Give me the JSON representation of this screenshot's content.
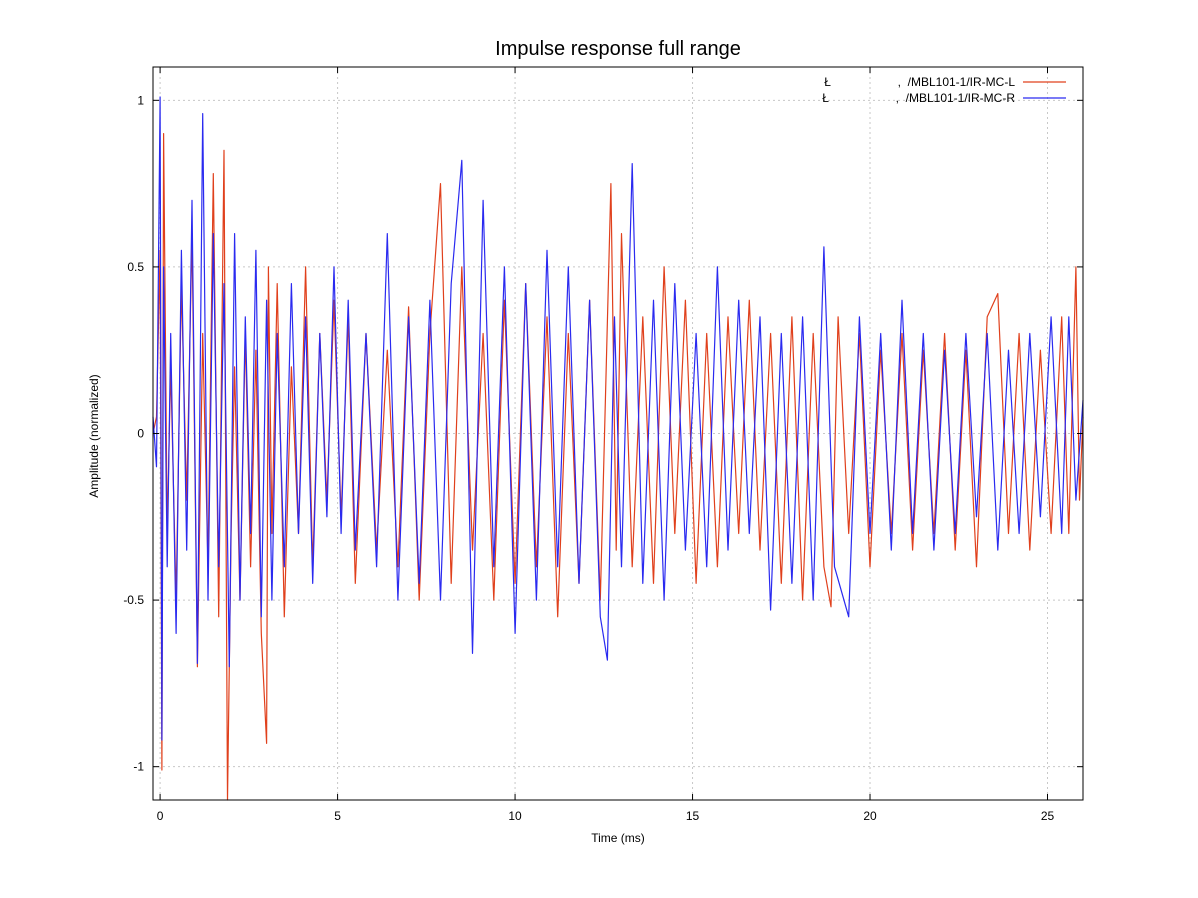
{
  "chart_data": {
    "type": "line",
    "title": "Impulse response full range",
    "xlabel": "Time (ms)",
    "ylabel": "Amplitude (normalized)",
    "xlim": [
      -0.2,
      26.0
    ],
    "ylim": [
      -1.1,
      1.1
    ],
    "xticks": [
      0,
      5,
      10,
      15,
      20,
      25
    ],
    "yticks": [
      -1,
      -0.5,
      0,
      0.5,
      1
    ],
    "xtick_labels": [
      "0",
      "5",
      "10",
      "15",
      "20",
      "25"
    ],
    "ytick_labels": [
      "-1",
      "-0.5",
      "0",
      "0.5",
      "1"
    ],
    "grid": true,
    "legend_position": "top-right",
    "series": [
      {
        "name": "Ł                    ,  /MBL101-1/IR-MC-L",
        "color": "#e0401c",
        "x": [
          -0.2,
          -0.1,
          0.0,
          0.05,
          0.1,
          0.2,
          0.3,
          0.45,
          0.6,
          0.75,
          0.9,
          1.05,
          1.2,
          1.35,
          1.5,
          1.65,
          1.8,
          1.9,
          2.0,
          2.1,
          2.25,
          2.4,
          2.55,
          2.7,
          2.85,
          3.0,
          3.05,
          3.15,
          3.3,
          3.5,
          3.7,
          3.9,
          4.1,
          4.3,
          4.5,
          4.7,
          4.9,
          5.1,
          5.3,
          5.5,
          5.8,
          6.1,
          6.4,
          6.7,
          7.0,
          7.3,
          7.6,
          7.9,
          8.2,
          8.5,
          8.8,
          9.1,
          9.4,
          9.7,
          10.0,
          10.3,
          10.6,
          10.9,
          11.2,
          11.5,
          11.8,
          12.1,
          12.4,
          12.7,
          12.85,
          13.0,
          13.3,
          13.6,
          13.9,
          14.2,
          14.5,
          14.8,
          15.1,
          15.4,
          15.7,
          16.0,
          16.3,
          16.6,
          16.9,
          17.2,
          17.5,
          17.8,
          18.1,
          18.4,
          18.7,
          18.9,
          19.1,
          19.4,
          19.7,
          20.0,
          20.3,
          20.6,
          20.9,
          21.2,
          21.5,
          21.8,
          22.1,
          22.4,
          22.7,
          23.0,
          23.3,
          23.6,
          23.9,
          24.2,
          24.5,
          24.8,
          25.1,
          25.4,
          25.6,
          25.8,
          25.9,
          26.0
        ],
        "y": [
          0.0,
          0.05,
          0.55,
          -1.01,
          0.9,
          -0.3,
          0.2,
          -0.5,
          0.45,
          -0.2,
          0.6,
          -0.7,
          0.3,
          -0.4,
          0.78,
          -0.55,
          0.85,
          -1.1,
          -0.3,
          0.2,
          -0.5,
          0.3,
          -0.4,
          0.25,
          -0.6,
          -0.93,
          0.5,
          -0.3,
          0.45,
          -0.55,
          0.2,
          -0.3,
          0.5,
          -0.4,
          0.3,
          -0.2,
          0.4,
          -0.25,
          0.35,
          -0.45,
          0.3,
          -0.35,
          0.25,
          -0.4,
          0.38,
          -0.5,
          0.3,
          0.75,
          -0.45,
          0.5,
          -0.35,
          0.3,
          -0.5,
          0.4,
          -0.45,
          0.45,
          -0.4,
          0.35,
          -0.55,
          0.3,
          -0.45,
          0.4,
          -0.5,
          0.75,
          -0.35,
          0.6,
          -0.4,
          0.35,
          -0.45,
          0.5,
          -0.3,
          0.4,
          -0.45,
          0.3,
          -0.4,
          0.35,
          -0.3,
          0.4,
          -0.35,
          0.3,
          -0.45,
          0.35,
          -0.5,
          0.3,
          -0.4,
          -0.52,
          0.35,
          -0.3,
          0.3,
          -0.4,
          0.25,
          -0.3,
          0.3,
          -0.35,
          0.25,
          -0.3,
          0.3,
          -0.35,
          0.25,
          -0.4,
          0.35,
          0.42,
          -0.3,
          0.3,
          -0.35,
          0.25,
          -0.3,
          0.35,
          -0.3,
          0.5,
          -0.2,
          0.05
        ]
      },
      {
        "name": "Ł                    ,  /MBL101-1/IR-MC-R",
        "color": "#2a2af0",
        "x": [
          -0.2,
          -0.1,
          0.0,
          0.05,
          0.1,
          0.2,
          0.3,
          0.45,
          0.6,
          0.75,
          0.9,
          1.05,
          1.2,
          1.35,
          1.5,
          1.65,
          1.8,
          1.95,
          2.1,
          2.25,
          2.4,
          2.55,
          2.7,
          2.85,
          3.0,
          3.15,
          3.3,
          3.5,
          3.7,
          3.9,
          4.1,
          4.3,
          4.5,
          4.7,
          4.9,
          5.1,
          5.3,
          5.5,
          5.8,
          6.1,
          6.4,
          6.7,
          7.0,
          7.3,
          7.6,
          7.9,
          8.2,
          8.5,
          8.8,
          9.1,
          9.4,
          9.7,
          10.0,
          10.3,
          10.6,
          10.9,
          11.2,
          11.5,
          11.8,
          12.1,
          12.4,
          12.6,
          12.8,
          13.0,
          13.3,
          13.6,
          13.9,
          14.2,
          14.5,
          14.8,
          15.1,
          15.4,
          15.7,
          16.0,
          16.3,
          16.6,
          16.9,
          17.2,
          17.5,
          17.8,
          18.1,
          18.4,
          18.7,
          19.0,
          19.4,
          19.7,
          20.0,
          20.3,
          20.6,
          20.9,
          21.2,
          21.5,
          21.8,
          22.1,
          22.4,
          22.7,
          23.0,
          23.3,
          23.6,
          23.9,
          24.2,
          24.5,
          24.8,
          25.1,
          25.4,
          25.6,
          25.8,
          26.0
        ],
        "y": [
          0.05,
          -0.1,
          1.01,
          -0.92,
          0.5,
          -0.4,
          0.3,
          -0.6,
          0.55,
          -0.35,
          0.7,
          -0.69,
          0.96,
          -0.5,
          0.6,
          -0.4,
          0.45,
          -0.7,
          0.6,
          -0.5,
          0.35,
          -0.3,
          0.55,
          -0.55,
          0.4,
          -0.5,
          0.3,
          -0.4,
          0.45,
          -0.3,
          0.35,
          -0.45,
          0.3,
          -0.25,
          0.5,
          -0.3,
          0.4,
          -0.35,
          0.3,
          -0.4,
          0.6,
          -0.5,
          0.35,
          -0.45,
          0.4,
          -0.5,
          0.45,
          0.82,
          -0.66,
          0.7,
          -0.4,
          0.5,
          -0.6,
          0.45,
          -0.5,
          0.55,
          -0.4,
          0.5,
          -0.45,
          0.4,
          -0.55,
          -0.68,
          0.35,
          -0.4,
          0.81,
          -0.45,
          0.4,
          -0.5,
          0.45,
          -0.35,
          0.3,
          -0.4,
          0.5,
          -0.35,
          0.4,
          -0.3,
          0.35,
          -0.53,
          0.3,
          -0.45,
          0.35,
          -0.5,
          0.56,
          -0.4,
          -0.55,
          0.35,
          -0.3,
          0.3,
          -0.35,
          0.4,
          -0.3,
          0.3,
          -0.35,
          0.25,
          -0.3,
          0.3,
          -0.25,
          0.3,
          -0.35,
          0.25,
          -0.3,
          0.3,
          -0.25,
          0.35,
          -0.3,
          0.35,
          -0.2,
          0.1
        ]
      }
    ]
  }
}
